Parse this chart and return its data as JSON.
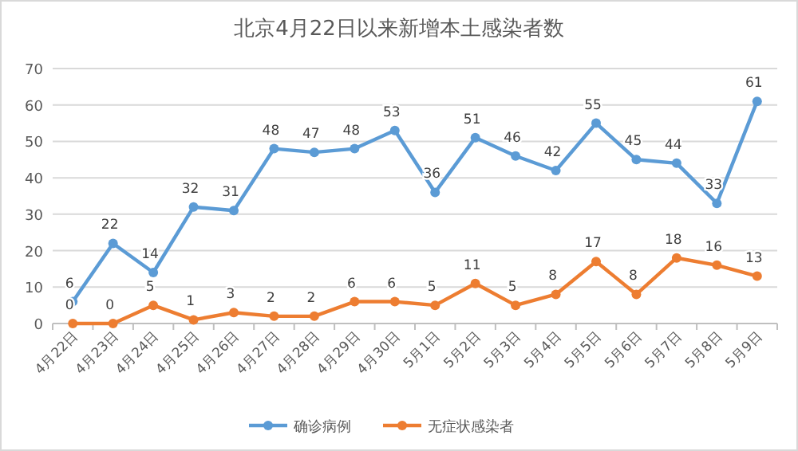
{
  "chart_data": {
    "type": "line",
    "title": "北京4月22日以来新增本土感染者数",
    "categories": [
      "4月22日",
      "4月23日",
      "4月24日",
      "4月25日",
      "4月26日",
      "4月27日",
      "4月28日",
      "4月29日",
      "4月30日",
      "5月1日",
      "5月2日",
      "5月3日",
      "5月4日",
      "5月5日",
      "5月6日",
      "5月7日",
      "5月8日",
      "5月9日"
    ],
    "series": [
      {
        "name": "确诊病例",
        "color": "#5b9bd5",
        "values": [
          6,
          22,
          14,
          32,
          31,
          48,
          47,
          48,
          53,
          36,
          51,
          46,
          42,
          55,
          45,
          44,
          33,
          61
        ]
      },
      {
        "name": "无症状感染者",
        "color": "#ed7d31",
        "values": [
          0,
          0,
          5,
          1,
          3,
          2,
          2,
          6,
          6,
          5,
          11,
          5,
          8,
          17,
          8,
          18,
          16,
          13
        ]
      }
    ],
    "ylim": [
      0,
      70
    ],
    "yticks": [
      0,
      10,
      20,
      30,
      40,
      50,
      60,
      70
    ],
    "grid": "y",
    "legend": "bottom",
    "marker": "circle",
    "data_labels": true
  }
}
